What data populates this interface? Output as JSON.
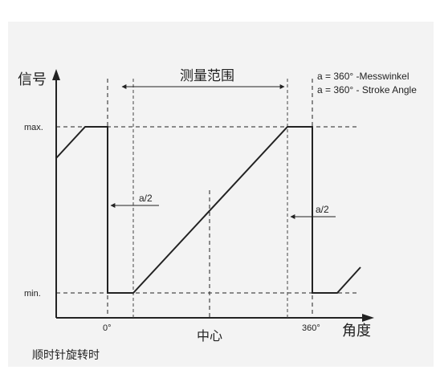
{
  "diagram": {
    "y_axis_label": "信号",
    "x_axis_label": "角度",
    "measurement_range_label": "测量范围",
    "legend_line_1": "a = 360°  -Messwinkel",
    "legend_line_2": "a = 360°  - Stroke Angle",
    "max_label": "max.",
    "min_label": "min.",
    "half_a_left_label": "a/2",
    "half_a_right_label": "a/2",
    "zero_label": "0°",
    "full_label": "360°",
    "center_label": "中心",
    "rotation_caption": "顺时针旋转时"
  },
  "colors": {
    "background": "#f3f3f3",
    "lines": "#222222"
  }
}
